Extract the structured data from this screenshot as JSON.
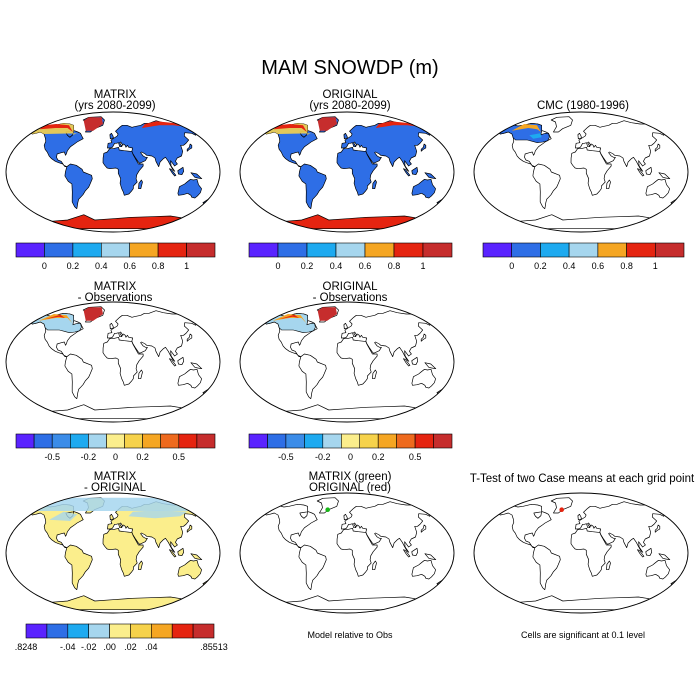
{
  "title": "MAM SNOWDP (m)",
  "colors": {
    "blue1": "#5a23ff",
    "blue2": "#2e6ee6",
    "blue3": "#1eaaf0",
    "lightblue": "#a6d6ee",
    "lightyellow": "#fbee8c",
    "yellow": "#f6d24b",
    "orange": "#f5a623",
    "redorange": "#ee6a1e",
    "red": "#e52410",
    "darkred": "#c62d2d",
    "land_blue": "#2e6ee6",
    "land_yellow": "#fbee8c",
    "marker_green": "#18b818",
    "marker_red": "#e52410"
  },
  "panels": [
    {
      "title_line1": "MATRIX",
      "title_line2": "(yrs 2080-2099)"
    },
    {
      "title_line1": "ORIGINAL",
      "title_line2": "(yrs 2080-2099)"
    },
    {
      "title_line1": "CMC (1980-1996)",
      "title_line2": ""
    },
    {
      "title_line1": "MATRIX",
      "title_line2": "- Observations"
    },
    {
      "title_line1": "ORIGINAL",
      "title_line2": "- Observations"
    },
    {
      "title_line1": "MATRIX",
      "title_line2": "- ORIGINAL"
    },
    {
      "title_line1": "MATRIX (green)",
      "title_line2": "ORIGINAL (red)"
    },
    {
      "title_line1": "T-Test of two Case means at each grid point",
      "title_line2": ""
    }
  ],
  "legends": {
    "field": {
      "labels": [
        "0",
        "0.2",
        "0.4",
        "0.6",
        "0.8",
        "1"
      ]
    },
    "diff": {
      "labels": [
        "-0.5",
        "-0.2",
        "0",
        "0.2",
        "0.5"
      ]
    },
    "casediff": {
      "labels": [
        ".8248",
        "-.04",
        "-.02",
        ".00",
        ".02",
        ".04",
        ".85513"
      ]
    }
  },
  "notes": {
    "model_relative": "Model relative to Obs",
    "cells_significant": "Cells are significant at 0.1 level"
  }
}
